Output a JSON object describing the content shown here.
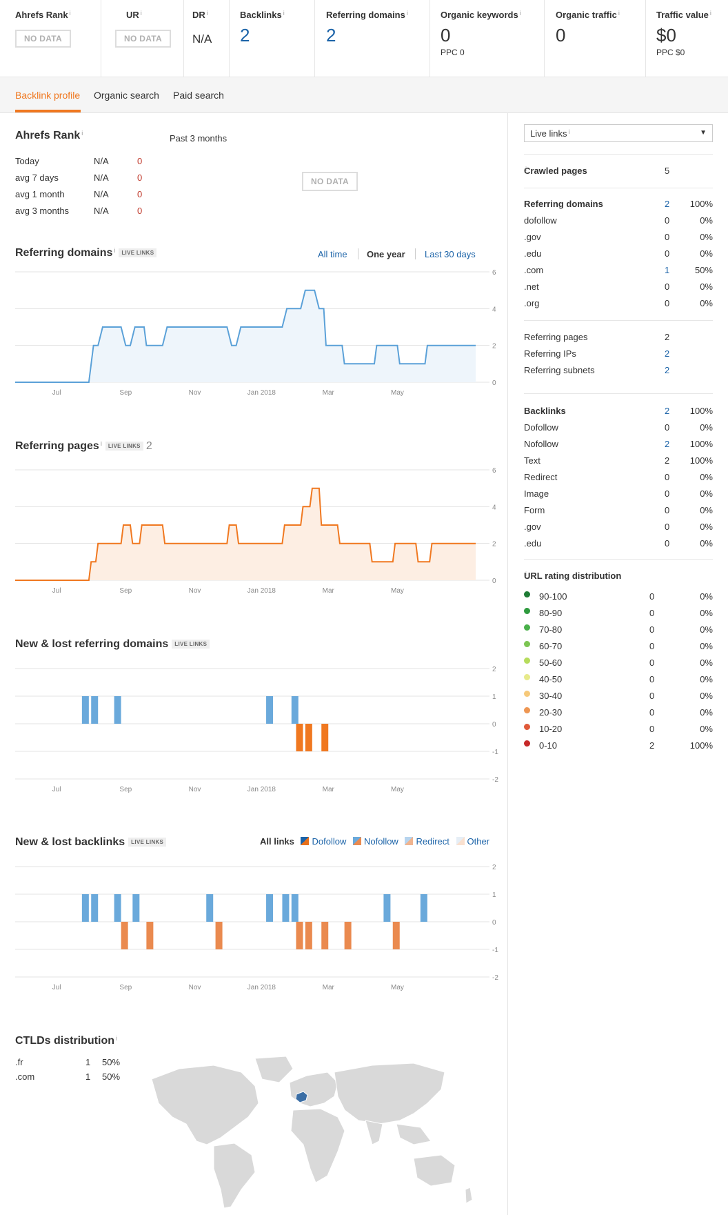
{
  "metrics": [
    {
      "label": "Ahrefs Rank",
      "info": "i",
      "nodata": "NO DATA"
    },
    {
      "label": "UR",
      "info": "i",
      "nodata": "NO DATA"
    },
    {
      "label": "DR",
      "info": "i",
      "value": "N/A"
    },
    {
      "label": "Backlinks",
      "info": "i",
      "value": "2"
    },
    {
      "label": "Referring domains",
      "info": "i",
      "value": "2"
    },
    {
      "label": "Organic keywords",
      "info": "i",
      "value": "0",
      "sub": "PPC 0"
    },
    {
      "label": "Organic traffic",
      "info": "i",
      "value": "0"
    },
    {
      "label": "Traffic value",
      "info": "i",
      "value": "$0",
      "sub": "PPC $0"
    }
  ],
  "tabs": [
    "Backlink profile",
    "Organic search",
    "Paid search"
  ],
  "ahrefs_rank": {
    "title": "Ahrefs Rank",
    "info": "i",
    "past_label": "Past 3 months",
    "nodata": "NO DATA",
    "rows": [
      {
        "label": "Today",
        "value": "N/A",
        "change": "0"
      },
      {
        "label": "avg 7 days",
        "value": "N/A",
        "change": "0"
      },
      {
        "label": "avg 1 month",
        "value": "N/A",
        "change": "0"
      },
      {
        "label": "avg 3 months",
        "value": "N/A",
        "change": "0"
      }
    ]
  },
  "ranges": [
    "All time",
    "One year",
    "Last 30 days"
  ],
  "live_links_badge": "LIVE LINKS",
  "sections": {
    "referring_domains": "Referring domains",
    "referring_pages": "Referring pages",
    "referring_pages_count": "2",
    "new_lost_domains": "New & lost referring domains",
    "new_lost_backlinks": "New & lost backlinks",
    "ctlds": "CTLDs distribution"
  },
  "legend": {
    "all": "All links",
    "items": [
      {
        "label": "Dofollow",
        "color_a": "#1b63a8",
        "color_b": "#e8701a"
      },
      {
        "label": "Nofollow",
        "color_a": "#6aa9db",
        "color_b": "#ea8a4f"
      },
      {
        "label": "Redirect",
        "color_a": "#b7d4ee",
        "color_b": "#f0b48f"
      },
      {
        "label": "Other",
        "color_a": "#e6eef6",
        "color_b": "#f9e0cf"
      }
    ]
  },
  "chart_data": [
    {
      "type": "line",
      "name": "Referring domains",
      "x_ticks": [
        "Jul",
        "Sep",
        "Nov",
        "Jan 2018",
        "Mar",
        "May"
      ],
      "y_ticks": [
        "6",
        "4",
        "2",
        "0"
      ],
      "ylim": [
        0,
        6
      ],
      "color": "#5ba1d8",
      "fill": "#eef5fb",
      "steps": [
        [
          0,
          0
        ],
        [
          0.16,
          0
        ],
        [
          0.17,
          2
        ],
        [
          0.18,
          2
        ],
        [
          0.19,
          3
        ],
        [
          0.23,
          3
        ],
        [
          0.24,
          2
        ],
        [
          0.25,
          2
        ],
        [
          0.26,
          3
        ],
        [
          0.28,
          3
        ],
        [
          0.285,
          2
        ],
        [
          0.32,
          2
        ],
        [
          0.33,
          3
        ],
        [
          0.46,
          3
        ],
        [
          0.47,
          2
        ],
        [
          0.48,
          2
        ],
        [
          0.49,
          3
        ],
        [
          0.58,
          3
        ],
        [
          0.59,
          4
        ],
        [
          0.62,
          4
        ],
        [
          0.63,
          5
        ],
        [
          0.65,
          5
        ],
        [
          0.66,
          4
        ],
        [
          0.67,
          4
        ],
        [
          0.675,
          2
        ],
        [
          0.71,
          2
        ],
        [
          0.715,
          1
        ],
        [
          0.78,
          1
        ],
        [
          0.785,
          2
        ],
        [
          0.83,
          2
        ],
        [
          0.835,
          1
        ],
        [
          0.89,
          1
        ],
        [
          0.895,
          2
        ],
        [
          1.0,
          2
        ]
      ]
    },
    {
      "type": "line",
      "name": "Referring pages",
      "x_ticks": [
        "Jul",
        "Sep",
        "Nov",
        "Jan 2018",
        "Mar",
        "May"
      ],
      "y_ticks": [
        "6",
        "4",
        "2",
        "0"
      ],
      "ylim": [
        0,
        6
      ],
      "color": "#f07820",
      "fill": "#fdeee3",
      "steps": [
        [
          0,
          0
        ],
        [
          0.16,
          0
        ],
        [
          0.165,
          1
        ],
        [
          0.175,
          1
        ],
        [
          0.18,
          2
        ],
        [
          0.23,
          2
        ],
        [
          0.235,
          3
        ],
        [
          0.25,
          3
        ],
        [
          0.255,
          2
        ],
        [
          0.27,
          2
        ],
        [
          0.275,
          3
        ],
        [
          0.32,
          3
        ],
        [
          0.325,
          2
        ],
        [
          0.46,
          2
        ],
        [
          0.465,
          3
        ],
        [
          0.48,
          3
        ],
        [
          0.485,
          2
        ],
        [
          0.58,
          2
        ],
        [
          0.585,
          3
        ],
        [
          0.62,
          3
        ],
        [
          0.625,
          4
        ],
        [
          0.64,
          4
        ],
        [
          0.645,
          5
        ],
        [
          0.66,
          5
        ],
        [
          0.665,
          3
        ],
        [
          0.7,
          3
        ],
        [
          0.705,
          2
        ],
        [
          0.77,
          2
        ],
        [
          0.775,
          1
        ],
        [
          0.82,
          1
        ],
        [
          0.825,
          2
        ],
        [
          0.87,
          2
        ],
        [
          0.875,
          1
        ],
        [
          0.9,
          1
        ],
        [
          0.905,
          2
        ],
        [
          1.0,
          2
        ]
      ]
    },
    {
      "type": "bar",
      "name": "New & lost referring domains",
      "x_ticks": [
        "Jul",
        "Sep",
        "Nov",
        "Jan 2018",
        "Mar",
        "May"
      ],
      "y_ticks": [
        "2",
        "1",
        "0",
        "-1",
        "-2"
      ],
      "ylim": [
        -2,
        2
      ],
      "new": [
        0.145,
        0.165,
        0.215,
        0.545,
        0.6
      ],
      "lost": [
        0.61,
        0.63,
        0.665
      ],
      "color_new": "#6aa9db",
      "color_lost": "#f07820"
    },
    {
      "type": "bar",
      "name": "New & lost backlinks",
      "x_ticks": [
        "Jul",
        "Sep",
        "Nov",
        "Jan 2018",
        "Mar",
        "May"
      ],
      "y_ticks": [
        "2",
        "1",
        "0",
        "-1",
        "-2"
      ],
      "ylim": [
        -2,
        2
      ],
      "new": [
        0.145,
        0.165,
        0.215,
        0.255,
        0.415,
        0.545,
        0.58,
        0.6,
        0.8,
        0.88
      ],
      "lost": [
        0.23,
        0.285,
        0.435,
        0.61,
        0.63,
        0.665,
        0.715,
        0.82
      ],
      "color_new": "#6aa9db",
      "color_lost": "#ea8a4f"
    }
  ],
  "ctld_rows": [
    {
      "tld": ".fr",
      "count": "1",
      "pct": "50%"
    },
    {
      "tld": ".com",
      "count": "1",
      "pct": "50%"
    }
  ],
  "right": {
    "select": "Live links",
    "info": "i",
    "crawled": {
      "label": "Crawled pages",
      "value": "5"
    },
    "ref_domains": [
      {
        "label": "Referring domains",
        "value": "2",
        "pct": "100%",
        "bold": true,
        "link": true
      },
      {
        "label": "dofollow",
        "value": "0",
        "pct": "0%"
      },
      {
        "label": ".gov",
        "value": "0",
        "pct": "0%"
      },
      {
        "label": ".edu",
        "value": "0",
        "pct": "0%"
      },
      {
        "label": ".com",
        "value": "1",
        "pct": "50%",
        "link": true
      },
      {
        "label": ".net",
        "value": "0",
        "pct": "0%"
      },
      {
        "label": ".org",
        "value": "0",
        "pct": "0%"
      }
    ],
    "ref_misc": [
      {
        "label": "Referring pages",
        "value": "2"
      },
      {
        "label": "Referring IPs",
        "value": "2",
        "link": true
      },
      {
        "label": "Referring subnets",
        "value": "2",
        "link": true
      }
    ],
    "backlinks": [
      {
        "label": "Backlinks",
        "value": "2",
        "pct": "100%",
        "bold": true,
        "link": true
      },
      {
        "label": "Dofollow",
        "value": "0",
        "pct": "0%"
      },
      {
        "label": "Nofollow",
        "value": "2",
        "pct": "100%",
        "link": true
      },
      {
        "label": "Text",
        "value": "2",
        "pct": "100%"
      },
      {
        "label": "Redirect",
        "value": "0",
        "pct": "0%"
      },
      {
        "label": "Image",
        "value": "0",
        "pct": "0%"
      },
      {
        "label": "Form",
        "value": "0",
        "pct": "0%"
      },
      {
        "label": ".gov",
        "value": "0",
        "pct": "0%"
      },
      {
        "label": ".edu",
        "value": "0",
        "pct": "0%"
      }
    ],
    "url_rating_title": "URL rating distribution",
    "url_rating": [
      {
        "label": "90-100",
        "value": "0",
        "pct": "0%",
        "color": "#1e7b34"
      },
      {
        "label": "80-90",
        "value": "0",
        "pct": "0%",
        "color": "#2e9a3e"
      },
      {
        "label": "70-80",
        "value": "0",
        "pct": "0%",
        "color": "#49b04a"
      },
      {
        "label": "60-70",
        "value": "0",
        "pct": "0%",
        "color": "#7cc552"
      },
      {
        "label": "50-60",
        "value": "0",
        "pct": "0%",
        "color": "#b6dc5c"
      },
      {
        "label": "40-50",
        "value": "0",
        "pct": "0%",
        "color": "#e7ea8a"
      },
      {
        "label": "30-40",
        "value": "0",
        "pct": "0%",
        "color": "#f6c97a"
      },
      {
        "label": "20-30",
        "value": "0",
        "pct": "0%",
        "color": "#ee9652"
      },
      {
        "label": "10-20",
        "value": "0",
        "pct": "0%",
        "color": "#e05a3a"
      },
      {
        "label": "0-10",
        "value": "2",
        "pct": "100%",
        "color": "#c62828"
      }
    ]
  }
}
